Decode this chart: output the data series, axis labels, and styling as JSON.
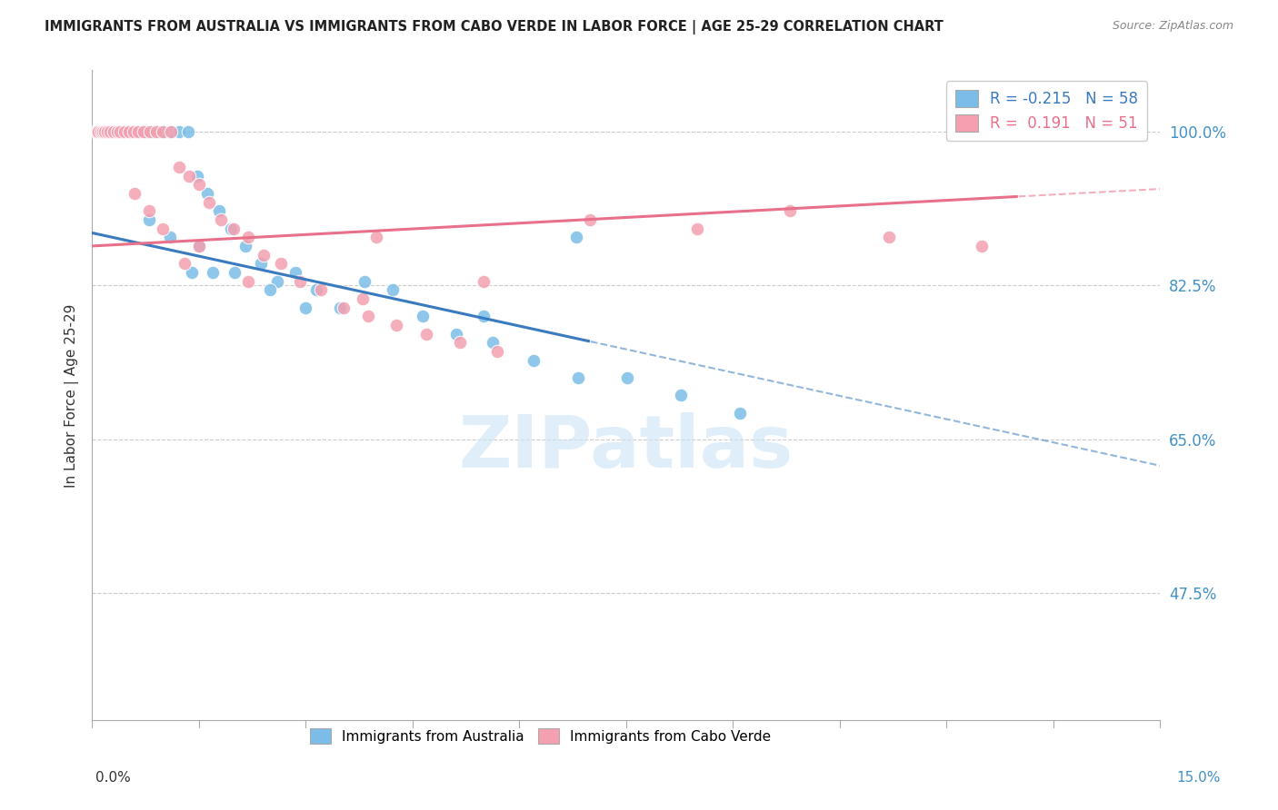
{
  "title": "IMMIGRANTS FROM AUSTRALIA VS IMMIGRANTS FROM CABO VERDE IN LABOR FORCE | AGE 25-29 CORRELATION CHART",
  "source": "Source: ZipAtlas.com",
  "ylabel": "In Labor Force | Age 25-29",
  "right_yticks": [
    47.5,
    65.0,
    82.5,
    100.0
  ],
  "xmin": 0.0,
  "xmax": 15.0,
  "ymin": 33.0,
  "ymax": 107.0,
  "legend_blue_r": "-0.215",
  "legend_blue_n": "58",
  "legend_pink_r": "0.191",
  "legend_pink_n": "51",
  "blue_color": "#7bbde8",
  "pink_color": "#f4a0b0",
  "blue_line_color": "#3a7bbf",
  "pink_line_color": "#e8708a",
  "blue_trend_x0": 0.0,
  "blue_trend_y0": 88.5,
  "blue_trend_x1": 15.0,
  "blue_trend_y1": 62.0,
  "blue_solid_end_x": 7.0,
  "pink_trend_x0": 0.0,
  "pink_trend_y0": 87.0,
  "pink_trend_x1": 15.0,
  "pink_trend_y1": 93.5,
  "pink_solid_end_x": 13.0,
  "blue_scatter_x": [
    0.05,
    0.07,
    0.09,
    0.11,
    0.13,
    0.15,
    0.17,
    0.19,
    0.21,
    0.24,
    0.27,
    0.3,
    0.33,
    0.36,
    0.4,
    0.44,
    0.48,
    0.53,
    0.58,
    0.63,
    0.7,
    0.77,
    0.85,
    0.93,
    1.02,
    1.12,
    1.23,
    1.35,
    1.48,
    1.62,
    1.78,
    1.95,
    2.15,
    2.37,
    2.6,
    2.86,
    3.15,
    3.48,
    3.83,
    4.22,
    4.65,
    5.12,
    5.63,
    6.2,
    6.83,
    7.52,
    8.27,
    9.1,
    1.5,
    2.0,
    2.5,
    3.0,
    0.8,
    1.1,
    1.4,
    1.7,
    6.8,
    5.5
  ],
  "blue_scatter_y": [
    100,
    100,
    100,
    100,
    100,
    100,
    100,
    100,
    100,
    100,
    100,
    100,
    100,
    100,
    100,
    100,
    100,
    100,
    100,
    100,
    100,
    100,
    100,
    100,
    100,
    100,
    100,
    100,
    95,
    93,
    91,
    89,
    87,
    85,
    83,
    84,
    82,
    80,
    83,
    82,
    79,
    77,
    76,
    74,
    72,
    72,
    70,
    68,
    87,
    84,
    82,
    80,
    90,
    88,
    84,
    84,
    88,
    79
  ],
  "pink_scatter_x": [
    0.05,
    0.07,
    0.09,
    0.12,
    0.15,
    0.18,
    0.22,
    0.26,
    0.3,
    0.35,
    0.4,
    0.46,
    0.52,
    0.58,
    0.65,
    0.73,
    0.81,
    0.9,
    1.0,
    1.11,
    1.23,
    1.36,
    1.5,
    1.65,
    1.81,
    1.99,
    2.19,
    2.41,
    2.65,
    2.92,
    3.21,
    3.53,
    3.88,
    4.27,
    4.7,
    5.17,
    5.69,
    7.0,
    8.5,
    9.8,
    11.2,
    12.5,
    2.2,
    1.5,
    0.6,
    0.8,
    1.0,
    1.3,
    3.8,
    5.5,
    4.0
  ],
  "pink_scatter_y": [
    100,
    100,
    100,
    100,
    100,
    100,
    100,
    100,
    100,
    100,
    100,
    100,
    100,
    100,
    100,
    100,
    100,
    100,
    100,
    100,
    96,
    95,
    94,
    92,
    90,
    89,
    88,
    86,
    85,
    83,
    82,
    80,
    79,
    78,
    77,
    76,
    75,
    90,
    89,
    91,
    88,
    87,
    83,
    87,
    93,
    91,
    89,
    85,
    81,
    83,
    88
  ]
}
